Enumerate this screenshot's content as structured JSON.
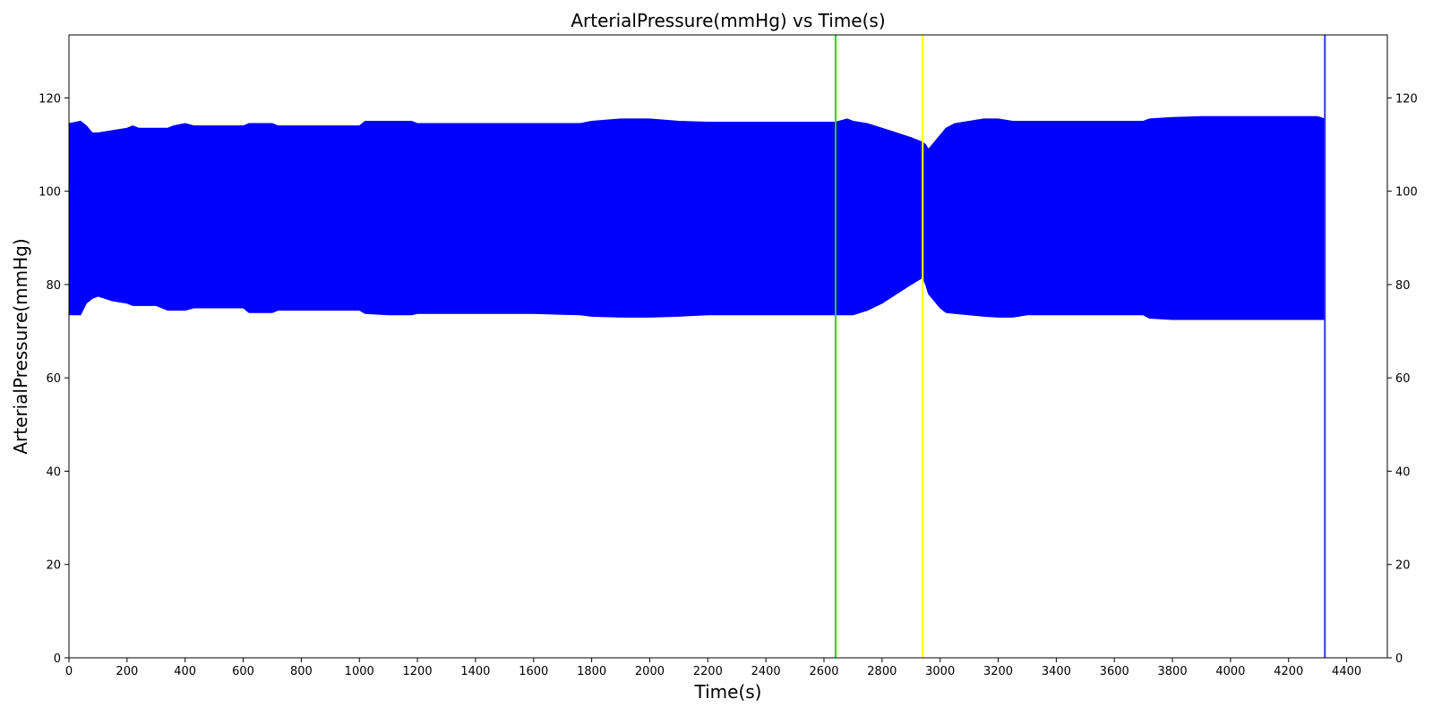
{
  "chart_data": {
    "type": "area",
    "title": "ArterialPressure(mmHg) vs Time(s)",
    "xlabel": "Time(s)",
    "ylabel": "ArterialPressure(mmHg)",
    "xlim": [
      0,
      4540
    ],
    "ylim": [
      0,
      133.5
    ],
    "xticks": [
      0,
      200,
      400,
      600,
      800,
      1000,
      1200,
      1400,
      1600,
      1800,
      2000,
      2200,
      2400,
      2600,
      2800,
      3000,
      3200,
      3400,
      3600,
      3800,
      4000,
      4200,
      4400
    ],
    "yticks": [
      0,
      20,
      40,
      60,
      80,
      100,
      120
    ],
    "grid": false,
    "right_axis_ticks": true,
    "series": [
      {
        "color": "#0000ff",
        "envelope": {
          "x": [
            0,
            40,
            60,
            80,
            100,
            150,
            200,
            220,
            240,
            300,
            340,
            360,
            400,
            430,
            500,
            600,
            620,
            700,
            720,
            800,
            1000,
            1020,
            1100,
            1180,
            1200,
            1400,
            1600,
            1760,
            1800,
            1900,
            2000,
            2100,
            2200,
            2400,
            2640,
            2680,
            2700,
            2750,
            2800,
            2850,
            2900,
            2940,
            2950,
            2960,
            2980,
            3000,
            3020,
            3050,
            3100,
            3150,
            3200,
            3250,
            3300,
            3400,
            3500,
            3700,
            3720,
            3800,
            3900,
            4000,
            4100,
            4200,
            4300,
            4325
          ],
          "upper": [
            114.5,
            115,
            114,
            112.5,
            112.5,
            113,
            113.5,
            114,
            113.5,
            113.5,
            113.5,
            114,
            114.5,
            114,
            114,
            114,
            114.5,
            114.5,
            114,
            114,
            114,
            115,
            115,
            115,
            114.5,
            114.5,
            114.5,
            114.5,
            115,
            115.5,
            115.5,
            115,
            114.8,
            114.8,
            114.8,
            115.5,
            115,
            114.5,
            113.5,
            112.5,
            111.5,
            110.5,
            110,
            109,
            110.5,
            112,
            113.5,
            114.5,
            115,
            115.5,
            115.5,
            115,
            115,
            115,
            115,
            115,
            115.5,
            115.8,
            116,
            116,
            116,
            116,
            116,
            115.5
          ],
          "lower": [
            73.5,
            73.5,
            76,
            77,
            77.5,
            76.5,
            76,
            75.5,
            75.5,
            75.5,
            74.5,
            74.5,
            74.5,
            75,
            75,
            75,
            74,
            74,
            74.5,
            74.5,
            74.5,
            73.8,
            73.5,
            73.5,
            73.8,
            73.8,
            73.8,
            73.5,
            73.2,
            73,
            73,
            73.2,
            73.5,
            73.5,
            73.5,
            73.5,
            73.5,
            74.5,
            76,
            78,
            80,
            81.5,
            80,
            78,
            76.5,
            75,
            74,
            73.8,
            73.5,
            73.2,
            73,
            73,
            73.5,
            73.5,
            73.5,
            73.5,
            72.8,
            72.5,
            72.5,
            72.5,
            72.5,
            72.5,
            72.5,
            72.5
          ]
        }
      }
    ],
    "vlines": [
      {
        "x": 2640,
        "color": "#00e000"
      },
      {
        "x": 2940,
        "color": "#ffff00"
      },
      {
        "x": 4325,
        "color": "#3333ff"
      }
    ]
  }
}
